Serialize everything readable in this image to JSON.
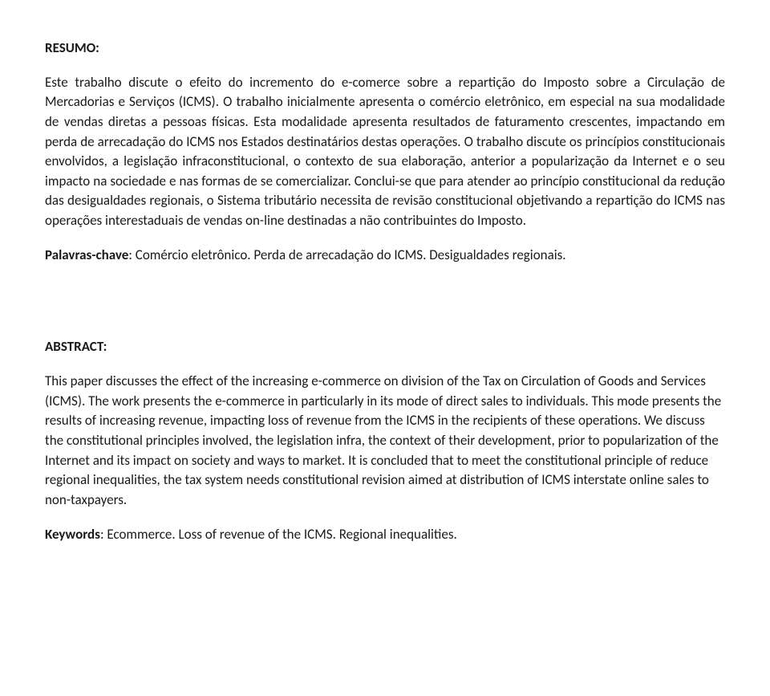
{
  "document": {
    "font_family": "Calibri",
    "body_font_size_pt": 12,
    "text_color": "#1a1a1a",
    "background_color": "#ffffff",
    "text_align_body": "justify",
    "resumo": {
      "heading": "RESUMO:",
      "body": "Este trabalho discute o efeito do incremento do e-comerce sobre a repartição do Imposto sobre a Circulação de Mercadorias e Serviços (ICMS). O trabalho inicialmente apresenta o comércio eletrônico, em especial na sua modalidade de vendas diretas a pessoas físicas. Esta modalidade apresenta resultados de faturamento crescentes, impactando em perda de arrecadação do ICMS nos Estados destinatários destas operações. O trabalho discute os princípios constitucionais envolvidos, a legislação infraconstitucional, o contexto de sua elaboração, anterior a popularização da Internet e o seu impacto na sociedade e nas formas de se comercializar. Conclui-se que para atender ao princípio constitucional da redução das desigualdades regionais, o Sistema tributário necessita de revisão constitucional objetivando a repartição do ICMS nas operações interestaduais de vendas on-line destinadas a não contribuintes do Imposto.",
      "keywords_label": "Palavras-chave",
      "keywords_text": ": Comércio eletrônico. Perda de arrecadação do ICMS. Desigualdades regionais."
    },
    "abstract": {
      "heading": "ABSTRACT:",
      "body": "This paper discusses the effect of the increasing e-commerce on division of the Tax on Circulation of Goods and Services (ICMS). The work presents the e-commerce in particularly in its mode of direct sales to individuals. This mode presents the results of increasing revenue, impacting loss of revenue from the ICMS in the recipients of these operations. We discuss the constitutional principles involved, the legislation infra, the context of their development, prior to popularization of the Internet and its impact on society and ways to market. It is concluded that to meet the constitutional principle of reduce regional inequalities, the tax system needs constitutional revision aimed at distribution of ICMS interstate online sales to non-taxpayers.",
      "keywords_label": "Keywords",
      "keywords_text": ": Ecommerce. Loss of revenue of the ICMS. Regional inequalities."
    }
  }
}
